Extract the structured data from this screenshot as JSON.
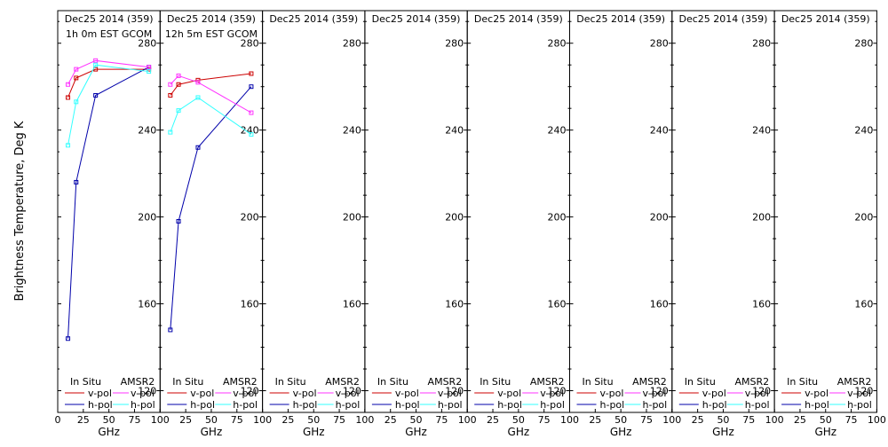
{
  "ylabel": "Brightness Temperature, Deg K",
  "xlabel": "GHz",
  "legend": {
    "insitu_title": "In Situ",
    "amsr2_title": "AMSR2",
    "vpol": "v-pol",
    "hpol": "h-pol"
  },
  "colors": {
    "insitu_v": "#cc0000",
    "insitu_h": "#0000aa",
    "amsr2_v": "#ff33ff",
    "amsr2_h": "#33ffff"
  },
  "chart_data": {
    "type": "line",
    "ylim": [
      110,
      295
    ],
    "xlim": [
      0,
      100
    ],
    "yticks": [
      "120",
      "160",
      "200",
      "240",
      "280"
    ],
    "xticks": [
      "0",
      "25",
      "50",
      "75",
      "100"
    ],
    "panels": [
      {
        "header": "Dec25 2014 (359)",
        "subheader": "1h 0m EST GCOM",
        "series": [
          {
            "key": "insitu_v",
            "x": [
              10,
              18,
              37,
              89
            ],
            "y": [
              255,
              264,
              268,
              268
            ]
          },
          {
            "key": "insitu_h",
            "x": [
              10,
              18,
              37,
              89
            ],
            "y": [
              144,
              216,
              256,
              269
            ]
          },
          {
            "key": "amsr2_v",
            "x": [
              10,
              18,
              37,
              89
            ],
            "y": [
              261,
              268,
              272,
              269
            ]
          },
          {
            "key": "amsr2_h",
            "x": [
              10,
              18,
              37,
              89
            ],
            "y": [
              233,
              253,
              270,
              267
            ]
          }
        ]
      },
      {
        "header": "Dec25 2014 (359)",
        "subheader": "12h 5m EST GCOM",
        "series": [
          {
            "key": "insitu_v",
            "x": [
              10,
              18,
              37,
              89
            ],
            "y": [
              256,
              261,
              263,
              266
            ]
          },
          {
            "key": "insitu_h",
            "x": [
              10,
              18,
              37,
              89
            ],
            "y": [
              148,
              198,
              232,
              260
            ]
          },
          {
            "key": "amsr2_v",
            "x": [
              10,
              18,
              37,
              89
            ],
            "y": [
              261,
              265,
              262,
              248
            ]
          },
          {
            "key": "amsr2_h",
            "x": [
              10,
              18,
              37,
              89
            ],
            "y": [
              239,
              249,
              255,
              238
            ]
          }
        ]
      },
      {
        "header": "Dec25 2014 (359)",
        "subheader": "",
        "series": []
      },
      {
        "header": "Dec25 2014 (359)",
        "subheader": "",
        "series": []
      },
      {
        "header": "Dec25 2014 (359)",
        "subheader": "",
        "series": []
      },
      {
        "header": "Dec25 2014 (359)",
        "subheader": "",
        "series": []
      },
      {
        "header": "Dec25 2014 (359)",
        "subheader": "",
        "series": []
      },
      {
        "header": "Dec25 2014 (359)",
        "subheader": "",
        "series": []
      }
    ]
  }
}
